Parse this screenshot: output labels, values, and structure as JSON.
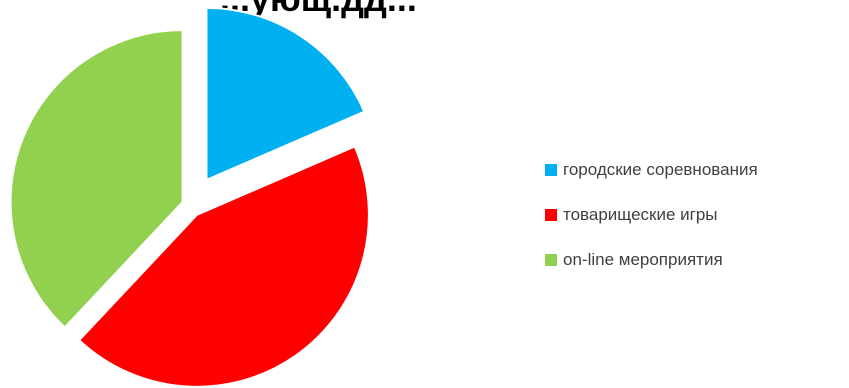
{
  "chart_data": {
    "type": "pie",
    "title": "...ующ.дд...",
    "series": [
      {
        "name": "городские соревнования",
        "value": 18.5,
        "color": "#00B0F0"
      },
      {
        "name": "товарищеские игры",
        "value": 43.5,
        "color": "#FF0000"
      },
      {
        "name": "on-line мероприятия",
        "value": 38.0,
        "color": "#92D050"
      }
    ],
    "legend_position": "right"
  }
}
